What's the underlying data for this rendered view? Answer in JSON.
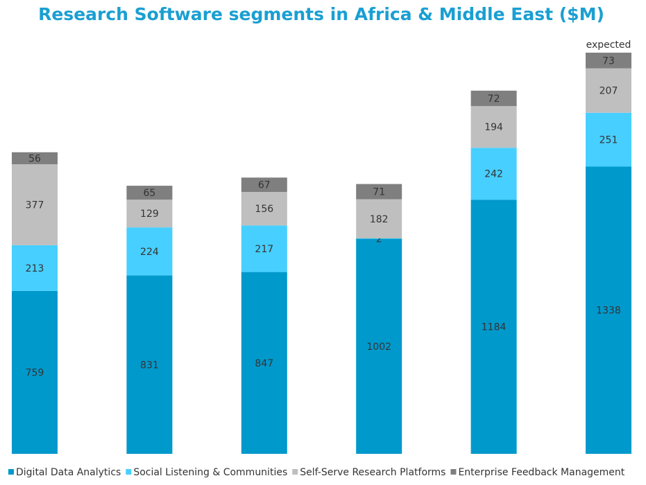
{
  "chart_data": {
    "type": "stacked-bar",
    "title": "Research Software segments in Africa & Middle East ($M)",
    "annotation": "expected",
    "categories": [
      null,
      null,
      null,
      null,
      null,
      null
    ],
    "series": [
      {
        "name": "Digital Data Analytics",
        "color": "#0099cc",
        "values": [
          759,
          831,
          847,
          1002,
          1184,
          1338
        ]
      },
      {
        "name": "Social Listening & Communities",
        "color": "#47cfff",
        "values": [
          213,
          224,
          217,
          2,
          242,
          251
        ]
      },
      {
        "name": "Self-Serve Research Platforms",
        "color": "#bfbfbf",
        "values": [
          377,
          129,
          156,
          182,
          194,
          207
        ]
      },
      {
        "name": "Enterprise Feedback Management",
        "color": "#7f7f7f",
        "values": [
          56,
          65,
          67,
          71,
          72,
          73
        ]
      }
    ],
    "legend": "bottom"
  }
}
